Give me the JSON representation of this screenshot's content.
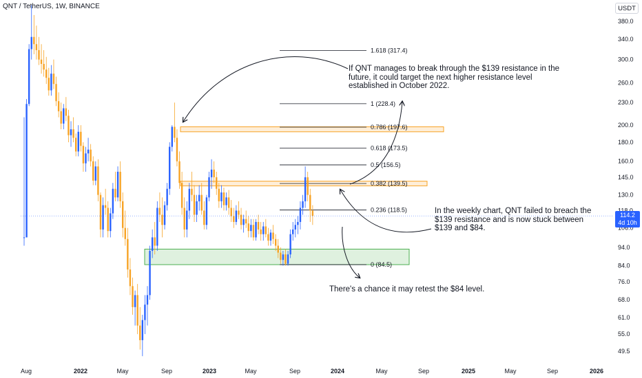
{
  "header": {
    "symbol_title": "QNT / TetherUS, 1W, BINANCE",
    "currency_label": "USDT"
  },
  "price_badge": {
    "price": "114.2",
    "countdown": "4d 10h"
  },
  "annotations": {
    "breakout_note": "If QNT manages to break through the $139 resistance in the future, it could target the next higher resistance level established in October 2022.",
    "weekly_note": "In the weekly chart, QNT failed to breach the $139 resistance and is now stuck between $139 and $84.",
    "retest_note": "There's a chance it may retest the $84 level."
  },
  "colors": {
    "up": "#2962ff",
    "down": "#f7a325",
    "resistance_zone": "#f7a325",
    "support_zone": "#4caf50",
    "badge": "#2962ff"
  },
  "chart_data": {
    "type": "candlestick",
    "title": "QNT / TetherUS, 1W, BINANCE",
    "y_scale": "log",
    "ylim": [
      45,
      420
    ],
    "y_ticks": [
      49.5,
      55.0,
      61.0,
      68.0,
      76.0,
      84.0,
      94.0,
      106.0,
      118.0,
      130.0,
      145.0,
      160.0,
      180.0,
      200.0,
      230.0,
      260.0,
      300.0,
      340.0,
      380.0
    ],
    "x_ticks": [
      {
        "label": "Aug",
        "bold": false
      },
      {
        "label": "2022",
        "bold": true
      },
      {
        "label": "May",
        "bold": false
      },
      {
        "label": "Sep",
        "bold": false
      },
      {
        "label": "2023",
        "bold": true
      },
      {
        "label": "May",
        "bold": false
      },
      {
        "label": "Sep",
        "bold": false
      },
      {
        "label": "2024",
        "bold": true
      },
      {
        "label": "May",
        "bold": false
      },
      {
        "label": "Sep",
        "bold": false
      },
      {
        "label": "2025",
        "bold": true
      },
      {
        "label": "May",
        "bold": false
      },
      {
        "label": "Sep",
        "bold": false
      },
      {
        "label": "2026",
        "bold": true
      }
    ],
    "fib_levels": [
      {
        "ratio": "1.618",
        "price": 317.4,
        "label": "1.618 (317.4)"
      },
      {
        "ratio": "1",
        "price": 228.4,
        "label": "1 (228.4)"
      },
      {
        "ratio": "0.786",
        "price": 197.6,
        "label": "0.786 (197.6)"
      },
      {
        "ratio": "0.618",
        "price": 173.5,
        "label": "0.618 (173.5)"
      },
      {
        "ratio": "0.5",
        "price": 156.5,
        "label": "0.5 (156.5)"
      },
      {
        "ratio": "0.382",
        "price": 139.5,
        "label": "0.382 (139.5)"
      },
      {
        "ratio": "0.236",
        "price": 118.5,
        "label": "0.236 (118.5)"
      },
      {
        "ratio": "0",
        "price": 84.5,
        "label": "0 (84.5)"
      }
    ],
    "zones": [
      {
        "name": "resistance-october-2022",
        "low": 192,
        "high": 198
      },
      {
        "name": "resistance-139",
        "low": 137.5,
        "high": 141.5
      },
      {
        "name": "support-84",
        "low": 84.5,
        "high": 93
      }
    ],
    "last_price": 114.2,
    "candles": [
      [
        100,
        210,
        95,
        100
      ],
      [
        100,
        235,
        100,
        228
      ],
      [
        228,
        330,
        225,
        320
      ],
      [
        320,
        420,
        300,
        345
      ],
      [
        345,
        395,
        310,
        330
      ],
      [
        330,
        370,
        300,
        318
      ],
      [
        318,
        345,
        290,
        300
      ],
      [
        300,
        330,
        275,
        292
      ],
      [
        292,
        318,
        270,
        282
      ],
      [
        282,
        305,
        258,
        268
      ],
      [
        268,
        285,
        240,
        248
      ],
      [
        248,
        290,
        240,
        275
      ],
      [
        275,
        300,
        250,
        258
      ],
      [
        258,
        270,
        225,
        232
      ],
      [
        232,
        245,
        210,
        218
      ],
      [
        218,
        230,
        195,
        202
      ],
      [
        202,
        228,
        195,
        222
      ],
      [
        222,
        238,
        205,
        212
      ],
      [
        212,
        220,
        180,
        188
      ],
      [
        188,
        205,
        175,
        195
      ],
      [
        195,
        210,
        180,
        185
      ],
      [
        185,
        190,
        165,
        170
      ],
      [
        170,
        200,
        165,
        192
      ],
      [
        192,
        200,
        170,
        176
      ],
      [
        176,
        180,
        150,
        158
      ],
      [
        158,
        175,
        150,
        168
      ],
      [
        168,
        185,
        160,
        172
      ],
      [
        172,
        178,
        155,
        160
      ],
      [
        160,
        165,
        138,
        142
      ],
      [
        142,
        160,
        138,
        155
      ],
      [
        155,
        162,
        125,
        130
      ],
      [
        130,
        132,
        100,
        105
      ],
      [
        105,
        128,
        100,
        122
      ],
      [
        122,
        135,
        115,
        120
      ],
      [
        120,
        125,
        100,
        104
      ],
      [
        104,
        120,
        100,
        116
      ],
      [
        116,
        140,
        112,
        135
      ],
      [
        135,
        150,
        125,
        128
      ],
      [
        128,
        155,
        125,
        150
      ],
      [
        150,
        160,
        120,
        125
      ],
      [
        125,
        132,
        100,
        106
      ],
      [
        106,
        118,
        95,
        99
      ],
      [
        99,
        106,
        78,
        82
      ],
      [
        82,
        88,
        70,
        74
      ],
      [
        74,
        78,
        62,
        65
      ],
      [
        65,
        72,
        58,
        70
      ],
      [
        70,
        75,
        55,
        58
      ],
      [
        58,
        65,
        50,
        53
      ],
      [
        53,
        62,
        48,
        60
      ],
      [
        60,
        70,
        55,
        66
      ],
      [
        66,
        74,
        58,
        70
      ],
      [
        70,
        95,
        68,
        92
      ],
      [
        92,
        105,
        88,
        100
      ],
      [
        100,
        110,
        90,
        95
      ],
      [
        95,
        125,
        92,
        120
      ],
      [
        120,
        132,
        110,
        115
      ],
      [
        115,
        128,
        100,
        108
      ],
      [
        108,
        125,
        105,
        122
      ],
      [
        122,
        140,
        118,
        135
      ],
      [
        135,
        180,
        130,
        175
      ],
      [
        175,
        200,
        170,
        198
      ],
      [
        198,
        230,
        180,
        185
      ],
      [
        185,
        195,
        155,
        160
      ],
      [
        160,
        170,
        135,
        140
      ],
      [
        140,
        150,
        115,
        120
      ],
      [
        120,
        128,
        100,
        105
      ],
      [
        105,
        125,
        100,
        118
      ],
      [
        118,
        140,
        112,
        135
      ],
      [
        135,
        150,
        125,
        130
      ],
      [
        130,
        138,
        110,
        115
      ],
      [
        115,
        130,
        110,
        125
      ],
      [
        125,
        138,
        118,
        130
      ],
      [
        130,
        140,
        115,
        118
      ],
      [
        118,
        125,
        105,
        108
      ],
      [
        108,
        130,
        105,
        128
      ],
      [
        128,
        150,
        125,
        145
      ],
      [
        145,
        162,
        135,
        152
      ],
      [
        152,
        160,
        140,
        145
      ],
      [
        145,
        150,
        130,
        135
      ],
      [
        135,
        140,
        120,
        125
      ],
      [
        125,
        138,
        120,
        132
      ],
      [
        132,
        136,
        118,
        122
      ],
      [
        122,
        132,
        118,
        128
      ],
      [
        128,
        134,
        115,
        120
      ],
      [
        120,
        126,
        110,
        114
      ],
      [
        114,
        120,
        106,
        110
      ],
      [
        110,
        122,
        108,
        118
      ],
      [
        118,
        125,
        112,
        115
      ],
      [
        115,
        120,
        105,
        108
      ],
      [
        108,
        115,
        103,
        112
      ],
      [
        112,
        118,
        106,
        109
      ],
      [
        109,
        114,
        100,
        104
      ],
      [
        104,
        112,
        100,
        108
      ],
      [
        108,
        112,
        98,
        100
      ],
      [
        100,
        112,
        98,
        110
      ],
      [
        110,
        115,
        102,
        105
      ],
      [
        105,
        110,
        98,
        102
      ],
      [
        102,
        110,
        98,
        107
      ],
      [
        107,
        112,
        100,
        102
      ],
      [
        102,
        106,
        95,
        98
      ],
      [
        98,
        105,
        95,
        103
      ],
      [
        103,
        108,
        96,
        99
      ],
      [
        99,
        102,
        92,
        95
      ],
      [
        95,
        99,
        88,
        91
      ],
      [
        91,
        94,
        85,
        87
      ],
      [
        87,
        92,
        84,
        90
      ],
      [
        90,
        93,
        84,
        85
      ],
      [
        85,
        92,
        84,
        90
      ],
      [
        90,
        105,
        88,
        102
      ],
      [
        102,
        110,
        98,
        105
      ],
      [
        105,
        112,
        100,
        108
      ],
      [
        108,
        114,
        102,
        110
      ],
      [
        110,
        125,
        105,
        120
      ],
      [
        120,
        130,
        115,
        125
      ],
      [
        125,
        155,
        120,
        145
      ],
      [
        145,
        150,
        125,
        130
      ],
      [
        130,
        135,
        110,
        118
      ],
      [
        118,
        122,
        108,
        114.2
      ]
    ]
  }
}
